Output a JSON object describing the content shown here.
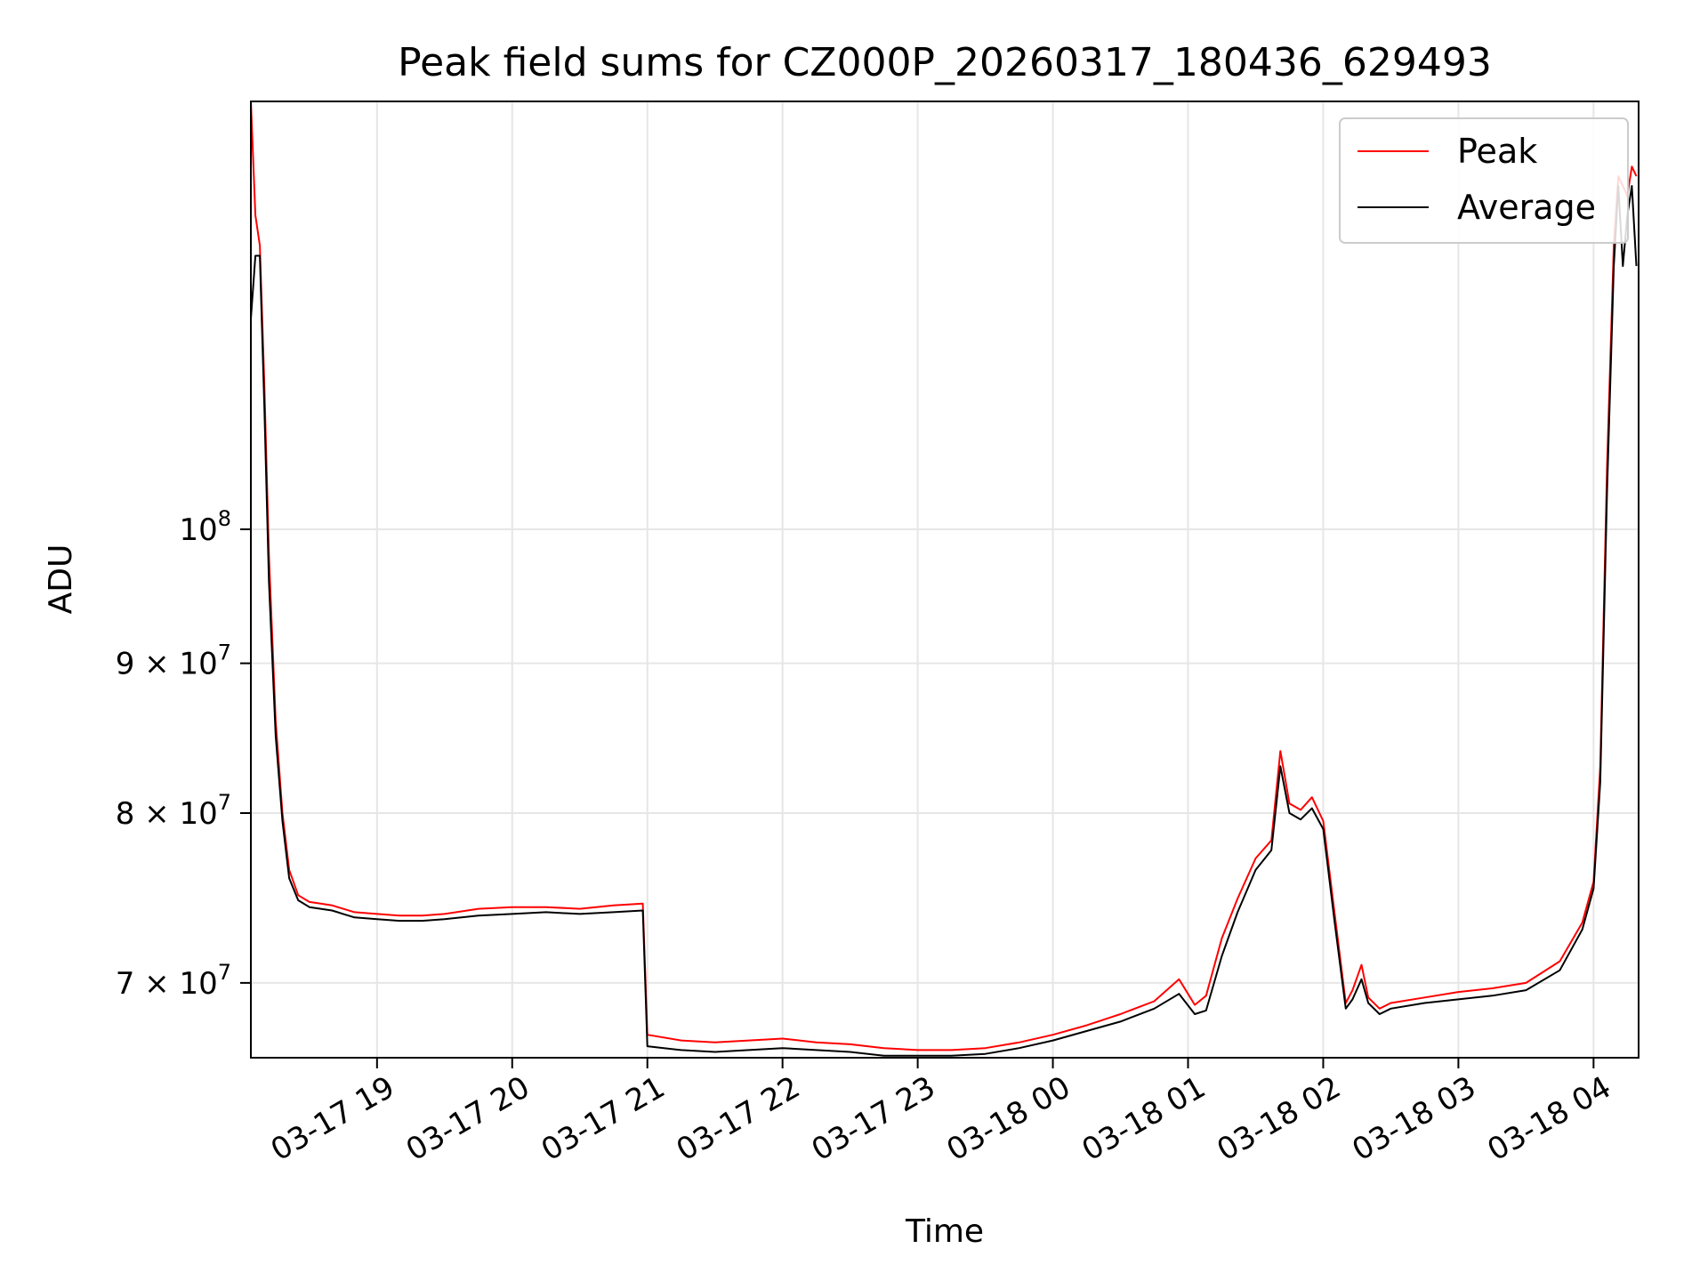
{
  "chart_data": {
    "type": "line",
    "title": "Peak field sums for CZ000P_20260317_180436_629493",
    "xlabel": "Time",
    "ylabel": "ADU",
    "x_scale": "time",
    "y_scale": "log",
    "xlim": [
      "2026-03-17 18:04",
      "2026-03-18 04:20"
    ],
    "ylim": [
      66000000,
      140000000
    ],
    "grid": true,
    "legend_position": "upper right",
    "x_ticks": [
      {
        "value": "2026-03-17 19:00",
        "label": "03-17 19"
      },
      {
        "value": "2026-03-17 20:00",
        "label": "03-17 20"
      },
      {
        "value": "2026-03-17 21:00",
        "label": "03-17 21"
      },
      {
        "value": "2026-03-17 22:00",
        "label": "03-17 22"
      },
      {
        "value": "2026-03-17 23:00",
        "label": "03-17 23"
      },
      {
        "value": "2026-03-18 00:00",
        "label": "03-18 00"
      },
      {
        "value": "2026-03-18 01:00",
        "label": "03-18 01"
      },
      {
        "value": "2026-03-18 02:00",
        "label": "03-18 02"
      },
      {
        "value": "2026-03-18 03:00",
        "label": "03-18 03"
      },
      {
        "value": "2026-03-18 04:00",
        "label": "03-18 04"
      }
    ],
    "y_ticks": [
      {
        "value": 70000000,
        "mantissa": "7",
        "base": "10",
        "exponent": "7"
      },
      {
        "value": 80000000,
        "mantissa": "8",
        "base": "10",
        "exponent": "7"
      },
      {
        "value": 90000000,
        "mantissa": "9",
        "base": "10",
        "exponent": "7"
      },
      {
        "value": 100000000,
        "mantissa": "",
        "base": "10",
        "exponent": "8"
      }
    ],
    "series": [
      {
        "name": "Peak",
        "color": "#ff0000",
        "x": [
          "2026-03-17 18:04",
          "2026-03-17 18:06",
          "2026-03-17 18:08",
          "2026-03-17 18:10",
          "2026-03-17 18:12",
          "2026-03-17 18:15",
          "2026-03-17 18:18",
          "2026-03-17 18:21",
          "2026-03-17 18:25",
          "2026-03-17 18:30",
          "2026-03-17 18:35",
          "2026-03-17 18:40",
          "2026-03-17 18:45",
          "2026-03-17 18:50",
          "2026-03-17 19:00",
          "2026-03-17 19:10",
          "2026-03-17 19:20",
          "2026-03-17 19:30",
          "2026-03-17 19:45",
          "2026-03-17 20:00",
          "2026-03-17 20:15",
          "2026-03-17 20:30",
          "2026-03-17 20:45",
          "2026-03-17 20:58",
          "2026-03-17 21:00",
          "2026-03-17 21:15",
          "2026-03-17 21:30",
          "2026-03-17 21:45",
          "2026-03-17 22:00",
          "2026-03-17 22:15",
          "2026-03-17 22:30",
          "2026-03-17 22:45",
          "2026-03-17 23:00",
          "2026-03-17 23:15",
          "2026-03-17 23:30",
          "2026-03-17 23:45",
          "2026-03-18 00:00",
          "2026-03-18 00:15",
          "2026-03-18 00:30",
          "2026-03-18 00:45",
          "2026-03-18 00:56",
          "2026-03-18 01:03",
          "2026-03-18 01:08",
          "2026-03-18 01:15",
          "2026-03-18 01:22",
          "2026-03-18 01:30",
          "2026-03-18 01:37",
          "2026-03-18 01:41",
          "2026-03-18 01:45",
          "2026-03-18 01:50",
          "2026-03-18 01:55",
          "2026-03-18 02:00",
          "2026-03-18 02:05",
          "2026-03-18 02:10",
          "2026-03-18 02:13",
          "2026-03-18 02:17",
          "2026-03-18 02:20",
          "2026-03-18 02:25",
          "2026-03-18 02:30",
          "2026-03-18 02:45",
          "2026-03-18 03:00",
          "2026-03-18 03:15",
          "2026-03-18 03:30",
          "2026-03-18 03:45",
          "2026-03-18 03:55",
          "2026-03-18 04:00",
          "2026-03-18 04:03",
          "2026-03-18 04:06",
          "2026-03-18 04:09",
          "2026-03-18 04:11",
          "2026-03-18 04:13",
          "2026-03-18 04:15",
          "2026-03-18 04:17",
          "2026-03-18 04:19"
        ],
        "y": [
          140000000,
          128000000,
          125000000,
          112000000,
          98000000,
          86000000,
          80000000,
          76500000,
          75000000,
          74600000,
          74500000,
          74400000,
          74200000,
          74000000,
          73900000,
          73800000,
          73800000,
          73900000,
          74200000,
          74300000,
          74300000,
          74200000,
          74400000,
          74500000,
          67200000,
          66900000,
          66800000,
          66900000,
          67000000,
          66800000,
          66700000,
          66500000,
          66400000,
          66400000,
          66500000,
          66800000,
          67200000,
          67700000,
          68300000,
          69000000,
          70200000,
          68800000,
          69300000,
          72500000,
          74800000,
          77200000,
          78300000,
          84000000,
          80600000,
          80200000,
          81000000,
          79500000,
          74000000,
          68900000,
          69600000,
          71000000,
          69200000,
          68600000,
          68900000,
          69200000,
          69500000,
          69700000,
          70000000,
          71200000,
          73400000,
          75800000,
          83000000,
          105000000,
          125000000,
          132000000,
          131000000,
          130000000,
          133000000,
          132000000
        ]
      },
      {
        "name": "Average",
        "color": "#000000",
        "x": [
          "2026-03-17 18:04",
          "2026-03-17 18:06",
          "2026-03-17 18:08",
          "2026-03-17 18:10",
          "2026-03-17 18:12",
          "2026-03-17 18:15",
          "2026-03-17 18:18",
          "2026-03-17 18:21",
          "2026-03-17 18:25",
          "2026-03-17 18:30",
          "2026-03-17 18:35",
          "2026-03-17 18:40",
          "2026-03-17 18:45",
          "2026-03-17 18:50",
          "2026-03-17 19:00",
          "2026-03-17 19:10",
          "2026-03-17 19:20",
          "2026-03-17 19:30",
          "2026-03-17 19:45",
          "2026-03-17 20:00",
          "2026-03-17 20:15",
          "2026-03-17 20:30",
          "2026-03-17 20:45",
          "2026-03-17 20:58",
          "2026-03-17 21:00",
          "2026-03-17 21:15",
          "2026-03-17 21:30",
          "2026-03-17 21:45",
          "2026-03-17 22:00",
          "2026-03-17 22:15",
          "2026-03-17 22:30",
          "2026-03-17 22:45",
          "2026-03-17 23:00",
          "2026-03-17 23:15",
          "2026-03-17 23:30",
          "2026-03-17 23:45",
          "2026-03-18 00:00",
          "2026-03-18 00:15",
          "2026-03-18 00:30",
          "2026-03-18 00:45",
          "2026-03-18 00:56",
          "2026-03-18 01:03",
          "2026-03-18 01:08",
          "2026-03-18 01:15",
          "2026-03-18 01:22",
          "2026-03-18 01:30",
          "2026-03-18 01:37",
          "2026-03-18 01:41",
          "2026-03-18 01:45",
          "2026-03-18 01:50",
          "2026-03-18 01:55",
          "2026-03-18 02:00",
          "2026-03-18 02:05",
          "2026-03-18 02:10",
          "2026-03-18 02:13",
          "2026-03-18 02:17",
          "2026-03-18 02:20",
          "2026-03-18 02:25",
          "2026-03-18 02:30",
          "2026-03-18 02:45",
          "2026-03-18 03:00",
          "2026-03-18 03:15",
          "2026-03-18 03:30",
          "2026-03-18 03:45",
          "2026-03-18 03:55",
          "2026-03-18 04:00",
          "2026-03-18 04:03",
          "2026-03-18 04:06",
          "2026-03-18 04:09",
          "2026-03-18 04:11",
          "2026-03-18 04:13",
          "2026-03-18 04:15",
          "2026-03-18 04:17",
          "2026-03-18 04:19"
        ],
        "y": [
          118000000,
          124000000,
          124000000,
          110000000,
          96000000,
          85000000,
          79500000,
          76000000,
          74700000,
          74300000,
          74200000,
          74100000,
          73900000,
          73700000,
          73600000,
          73500000,
          73500000,
          73600000,
          73800000,
          73900000,
          74000000,
          73900000,
          74000000,
          74100000,
          66600000,
          66400000,
          66300000,
          66400000,
          66500000,
          66400000,
          66300000,
          66100000,
          66100000,
          66100000,
          66200000,
          66500000,
          66900000,
          67400000,
          67900000,
          68600000,
          69400000,
          68300000,
          68500000,
          71500000,
          74000000,
          76500000,
          77700000,
          83000000,
          80000000,
          79600000,
          80300000,
          79000000,
          73500000,
          68600000,
          69100000,
          70200000,
          68900000,
          68300000,
          68600000,
          68900000,
          69100000,
          69300000,
          69600000,
          70700000,
          73000000,
          75400000,
          82000000,
          103000000,
          123000000,
          131000000,
          123000000,
          128000000,
          131000000,
          123000000
        ]
      }
    ]
  }
}
